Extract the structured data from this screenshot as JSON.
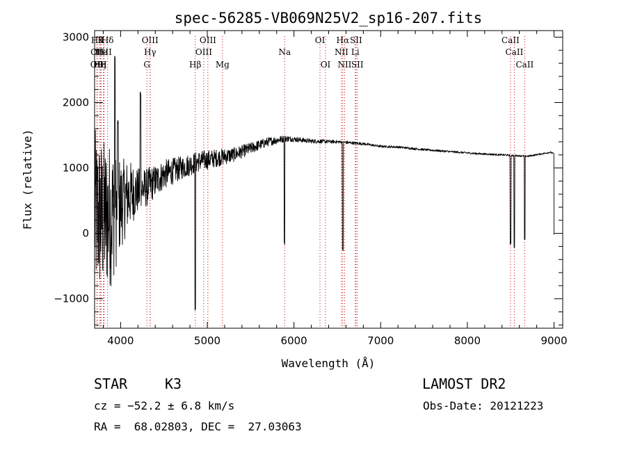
{
  "chart_data": {
    "type": "line",
    "title": "spec-56285-VB069N25V2_sp16-207.fits",
    "xlabel": "Wavelength (Å)",
    "ylabel": "Flux (relative)",
    "xlim": [
      3700,
      9100
    ],
    "ylim": [
      -1450,
      3100
    ],
    "xticks": [
      4000,
      5000,
      6000,
      7000,
      8000,
      9000
    ],
    "xtick_labels": [
      "4000",
      "5000",
      "6000",
      "7000",
      "8000",
      "9000"
    ],
    "yticks": [
      -1000,
      0,
      1000,
      2000,
      3000
    ],
    "ytick_labels": [
      "−1000",
      "0",
      "1000",
      "2000",
      "3000"
    ],
    "spectrum_anchors": [
      [
        3700,
        300
      ],
      [
        3800,
        250
      ],
      [
        3900,
        300
      ],
      [
        4000,
        450
      ],
      [
        4100,
        600
      ],
      [
        4200,
        650
      ],
      [
        4300,
        700
      ],
      [
        4400,
        800
      ],
      [
        4500,
        900
      ],
      [
        4700,
        1000
      ],
      [
        4900,
        1100
      ],
      [
        5100,
        1150
      ],
      [
        5300,
        1200
      ],
      [
        5500,
        1300
      ],
      [
        5700,
        1400
      ],
      [
        5900,
        1450
      ],
      [
        6000,
        1440
      ],
      [
        6200,
        1410
      ],
      [
        6500,
        1400
      ],
      [
        6800,
        1370
      ],
      [
        7000,
        1330
      ],
      [
        7200,
        1320
      ],
      [
        7500,
        1280
      ],
      [
        7800,
        1250
      ],
      [
        8100,
        1220
      ],
      [
        8400,
        1200
      ],
      [
        8700,
        1180
      ],
      [
        8960,
        1240
      ],
      [
        8990,
        1220
      ]
    ],
    "noise_amplitude": [
      [
        3700,
        1300
      ],
      [
        3900,
        1100
      ],
      [
        4000,
        700
      ],
      [
        4200,
        350
      ],
      [
        4400,
        250
      ],
      [
        4700,
        180
      ],
      [
        5000,
        150
      ],
      [
        5400,
        100
      ],
      [
        5700,
        70
      ],
      [
        6000,
        40
      ],
      [
        6500,
        25
      ],
      [
        7000,
        18
      ],
      [
        9000,
        12
      ]
    ],
    "spikes": [
      [
        3934,
        2700
      ],
      [
        3968,
        1700
      ],
      [
        4227,
        1000
      ],
      [
        4230,
        2150
      ],
      [
        4861,
        -1150
      ],
      [
        5890,
        -150
      ],
      [
        6563,
        -250
      ],
      [
        8498,
        -150
      ],
      [
        8542,
        -200
      ],
      [
        8662,
        -120
      ]
    ],
    "end_drop": [
      9000,
      -20
    ],
    "line_markers": [
      {
        "x": 3730,
        "label": "Hθ",
        "row": 0
      },
      {
        "x": 3771,
        "label": "K",
        "row": 0
      },
      {
        "x": 3850,
        "label": "Hδ",
        "row": 0
      },
      {
        "x": 3730,
        "label": "OII",
        "row": 1
      },
      {
        "x": 3776,
        "label": "He",
        "row": 1
      },
      {
        "x": 3810,
        "label": "ISII",
        "row": 1
      },
      {
        "x": 3727,
        "label": "OII",
        "row": 2
      },
      {
        "x": 3760,
        "label": "Hη",
        "row": 2
      },
      {
        "x": 3800,
        "label": "H",
        "row": 2
      },
      {
        "x": 4340,
        "label": "OIII",
        "row": 0
      },
      {
        "x": 4340,
        "label": "Hγ",
        "row": 1
      },
      {
        "x": 4303,
        "label": "G",
        "row": 2
      },
      {
        "x": 4861,
        "label": "Hβ",
        "row": 2
      },
      {
        "x": 5007,
        "label": "OIII",
        "row": 0
      },
      {
        "x": 4959,
        "label": "OIII",
        "row": 1
      },
      {
        "x": 5175,
        "label": "Mg",
        "row": 2
      },
      {
        "x": 5893,
        "label": "Na",
        "row": 1
      },
      {
        "x": 6300,
        "label": "OI",
        "row": 0
      },
      {
        "x": 6364,
        "label": "OI",
        "row": 2
      },
      {
        "x": 6563,
        "label": "Hα",
        "row": 0
      },
      {
        "x": 6548,
        "label": "NII",
        "row": 1
      },
      {
        "x": 6584,
        "label": "NII",
        "row": 2
      },
      {
        "x": 6716,
        "label": "SII",
        "row": 0
      },
      {
        "x": 6707,
        "label": "Li",
        "row": 1
      },
      {
        "x": 6731,
        "label": "SII",
        "row": 2
      },
      {
        "x": 8498,
        "label": "CaII",
        "row": 0
      },
      {
        "x": 8542,
        "label": "CaII",
        "row": 1
      },
      {
        "x": 8662,
        "label": "CaII",
        "row": 2
      }
    ]
  },
  "footer": {
    "object_class": "STAR",
    "subclass": "K3",
    "survey": "LAMOST DR2",
    "redshift": "cz = −52.2 ± 6.8 km/s",
    "obs_date": "Obs-Date: 20121223",
    "coords": "RA =  68.02803, DEC =  27.03063"
  }
}
